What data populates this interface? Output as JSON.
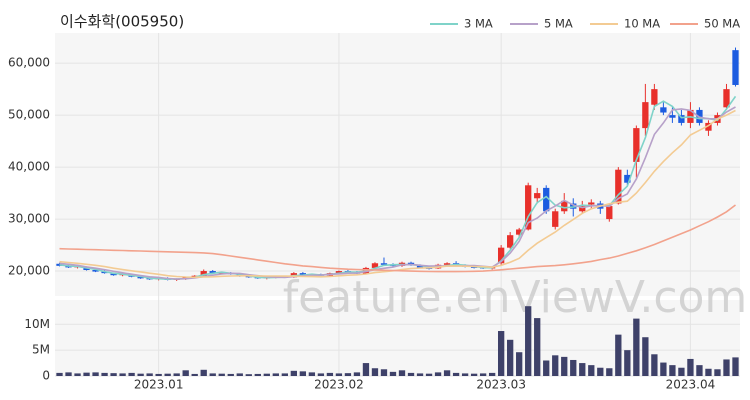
{
  "chart_data": [
    {
      "type": "candlestick",
      "title": "이수화학(005950)",
      "legend": "top-right",
      "grid": true,
      "up_color": "#e8302b",
      "down_color": "#1c5ce0",
      "ylim": [
        15200,
        65800
      ],
      "yticks": [
        {
          "value": 20000,
          "label": "20,000"
        },
        {
          "value": 30000,
          "label": "30,000"
        },
        {
          "value": 40000,
          "label": "40,000"
        },
        {
          "value": 50000,
          "label": "50,000"
        },
        {
          "value": 60000,
          "label": "60,000"
        }
      ],
      "xticks": [
        {
          "value": 11,
          "label": "2023.01"
        },
        {
          "value": 31,
          "label": "2023.02"
        },
        {
          "value": 49,
          "label": "2023.03"
        },
        {
          "value": 70,
          "label": "2023.04"
        }
      ],
      "open": [
        21400,
        21000,
        20700,
        20800,
        20200,
        19900,
        19500,
        19200,
        19300,
        18900,
        18600,
        18400,
        18600,
        18300,
        18500,
        18800,
        19100,
        20000,
        19600,
        19700,
        19400,
        19000,
        18800,
        18600,
        18800,
        18900,
        18800,
        19600,
        19200,
        19400,
        19100,
        19600,
        20000,
        19800,
        19500,
        20600,
        21500,
        21200,
        21000,
        21600,
        21100,
        20600,
        20500,
        21200,
        21500,
        21100,
        20800,
        20700,
        20500,
        21500,
        24500,
        27000,
        28000,
        34000,
        36000,
        28500,
        31500,
        33000,
        31500,
        32800,
        33000,
        30000,
        33000,
        38500,
        41000,
        47500,
        52000,
        51500,
        50000,
        50000,
        48500,
        51000,
        47000,
        48500,
        51500,
        62500
      ],
      "high": [
        21600,
        21300,
        21000,
        20900,
        20400,
        20100,
        19700,
        19500,
        19400,
        19100,
        18800,
        18700,
        18800,
        18600,
        18900,
        19200,
        20300,
        20200,
        19900,
        19800,
        19500,
        19200,
        19000,
        18900,
        19100,
        19000,
        19800,
        19800,
        19500,
        19500,
        19700,
        20100,
        20400,
        20000,
        20800,
        21700,
        22600,
        21500,
        21800,
        21800,
        21300,
        20900,
        21400,
        21700,
        21900,
        21300,
        21100,
        21000,
        20800,
        25000,
        27500,
        28300,
        37000,
        36000,
        36500,
        32000,
        35000,
        34000,
        33500,
        33800,
        33500,
        33000,
        40000,
        39500,
        48000,
        56000,
        56000,
        52500,
        51500,
        51000,
        52500,
        51500,
        49000,
        50500,
        56000,
        63000
      ],
      "low": [
        20900,
        20600,
        20500,
        20100,
        19800,
        19500,
        19100,
        19000,
        18800,
        18500,
        18300,
        18200,
        18200,
        18100,
        18300,
        18700,
        19000,
        19500,
        19400,
        19300,
        18900,
        18700,
        18500,
        18400,
        18600,
        18700,
        18700,
        19100,
        18900,
        19000,
        19000,
        19400,
        19700,
        19400,
        19400,
        20400,
        21000,
        20800,
        20800,
        21000,
        20500,
        20300,
        20400,
        21000,
        21000,
        20700,
        20500,
        20400,
        20300,
        21200,
        24300,
        26500,
        27800,
        33000,
        31000,
        28000,
        31000,
        30500,
        31000,
        32000,
        31000,
        29500,
        32800,
        36500,
        38000,
        46000,
        51000,
        50000,
        48500,
        48000,
        47500,
        48000,
        46000,
        48000,
        51000,
        55500
      ],
      "close": [
        21000,
        20700,
        20900,
        20200,
        19900,
        19600,
        19200,
        19400,
        18900,
        18600,
        18400,
        18600,
        18300,
        18500,
        18800,
        19100,
        20000,
        19600,
        19700,
        19400,
        19000,
        18800,
        18600,
        18800,
        18900,
        18800,
        19600,
        19200,
        19400,
        19100,
        19600,
        20000,
        19800,
        19500,
        20600,
        21500,
        21200,
        21000,
        21600,
        21100,
        20600,
        20500,
        21200,
        21500,
        21100,
        20800,
        20700,
        20500,
        20700,
        24500,
        26900,
        28000,
        36500,
        35000,
        31500,
        31500,
        33500,
        32000,
        32500,
        33200,
        32000,
        32500,
        39500,
        37000,
        47500,
        52500,
        55000,
        50500,
        49500,
        48500,
        51000,
        48500,
        48500,
        50000,
        55000,
        55800
      ],
      "series": [
        {
          "name": "3 MA",
          "color": "#7fd3c9",
          "values": [
            21200,
            21000,
            20870,
            20600,
            20330,
            19900,
            19570,
            19400,
            19170,
            18970,
            18630,
            18530,
            18430,
            18470,
            18530,
            18800,
            19300,
            19570,
            19770,
            19570,
            19370,
            19070,
            18800,
            18730,
            18770,
            18830,
            19100,
            19200,
            19400,
            19230,
            19370,
            19570,
            19800,
            19770,
            19970,
            20530,
            21100,
            21230,
            21270,
            21230,
            21100,
            20730,
            20770,
            21070,
            21270,
            21130,
            20870,
            20670,
            20630,
            21970,
            24030,
            26470,
            30470,
            33170,
            34330,
            32670,
            32170,
            32330,
            32670,
            32570,
            32570,
            32570,
            34670,
            36330,
            41330,
            45670,
            51670,
            52670,
            51670,
            49500,
            49670,
            49330,
            49330,
            49000,
            51170,
            53600
          ]
        },
        {
          "name": "5 MA",
          "color": "#b7a1c9",
          "values": [
            21500,
            21300,
            21100,
            20800,
            20540,
            20260,
            19960,
            19660,
            19400,
            19140,
            18900,
            18780,
            18560,
            18480,
            18520,
            18660,
            18940,
            19200,
            19440,
            19560,
            19540,
            19300,
            19100,
            18920,
            18820,
            18780,
            18940,
            19060,
            19180,
            19220,
            19380,
            19460,
            19580,
            19600,
            19900,
            20280,
            20520,
            20760,
            21180,
            21280,
            21100,
            20960,
            21000,
            20980,
            20980,
            21020,
            21060,
            20920,
            20760,
            21840,
            23460,
            25720,
            29320,
            30180,
            31580,
            32500,
            33600,
            32700,
            32200,
            32540,
            32640,
            32440,
            33940,
            34840,
            37700,
            41800,
            46300,
            48500,
            51000,
            51200,
            50900,
            49600,
            49300,
            49300,
            50600,
            51560
          ]
        },
        {
          "name": "10 MA",
          "color": "#f3cb93",
          "values": [
            21800,
            21650,
            21500,
            21300,
            21100,
            20850,
            20550,
            20300,
            20050,
            19840,
            19580,
            19370,
            19110,
            18960,
            18850,
            18800,
            18880,
            18900,
            18990,
            19040,
            19080,
            19100,
            19060,
            19050,
            19040,
            19030,
            19000,
            18960,
            18930,
            18900,
            18960,
            19080,
            19200,
            19270,
            19440,
            19710,
            19870,
            20050,
            20270,
            20470,
            20570,
            20620,
            20750,
            20950,
            21000,
            20930,
            20880,
            20830,
            20740,
            21080,
            21710,
            22460,
            24000,
            25350,
            26430,
            27500,
            28780,
            29930,
            31110,
            31980,
            32490,
            32940,
            33240,
            33440,
            34990,
            37040,
            39200,
            41050,
            42750,
            44280,
            46180,
            47080,
            47980,
            49260,
            50010,
            50890
          ]
        },
        {
          "name": "50 MA",
          "color": "#f2a28c",
          "values": [
            24300,
            24250,
            24200,
            24150,
            24100,
            24050,
            24000,
            23950,
            23900,
            23850,
            23800,
            23750,
            23700,
            23650,
            23600,
            23550,
            23500,
            23350,
            23150,
            22900,
            22650,
            22400,
            22150,
            21900,
            21650,
            21400,
            21200,
            21000,
            20850,
            20700,
            20550,
            20450,
            20350,
            20300,
            20250,
            20200,
            20150,
            20100,
            20050,
            20000,
            19950,
            19920,
            19900,
            19900,
            19900,
            19920,
            19950,
            20000,
            20100,
            20250,
            20400,
            20550,
            20700,
            20850,
            20950,
            21050,
            21200,
            21400,
            21600,
            21850,
            22200,
            22500,
            22900,
            23400,
            23900,
            24500,
            25100,
            25800,
            26500,
            27200,
            27900,
            28700,
            29500,
            30400,
            31400,
            32700
          ]
        }
      ]
    },
    {
      "type": "bar",
      "color": "#3e4169",
      "ylim": [
        0,
        14700000
      ],
      "yticks": [
        0,
        {
          "value": 5000000,
          "label": "5M"
        },
        {
          "value": 10000000,
          "label": "10M"
        }
      ],
      "values": [
        600000,
        700000,
        500000,
        650000,
        700000,
        600000,
        550000,
        500000,
        600000,
        450000,
        500000,
        400000,
        450000,
        500000,
        1100000,
        400000,
        1200000,
        500000,
        450000,
        400000,
        500000,
        350000,
        400000,
        450000,
        500000,
        500000,
        1000000,
        900000,
        700000,
        500000,
        600000,
        500000,
        550000,
        700000,
        2500000,
        1500000,
        1300000,
        800000,
        1100000,
        600000,
        500000,
        450000,
        700000,
        1100000,
        600000,
        500000,
        450000,
        500000,
        600000,
        8700000,
        7000000,
        4600000,
        13500000,
        11200000,
        3000000,
        4000000,
        3700000,
        3100000,
        2500000,
        2100000,
        1600000,
        1500000,
        8000000,
        5000000,
        11100000,
        7500000,
        4200000,
        2600000,
        2100000,
        1600000,
        3300000,
        2100000,
        1400000,
        1300000,
        3200000,
        3600000
      ]
    }
  ],
  "watermark": "feature.enViewV.com"
}
